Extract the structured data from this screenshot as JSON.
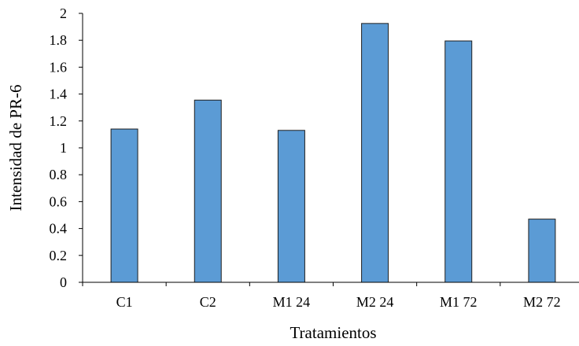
{
  "chart_data": {
    "type": "bar",
    "categories": [
      "C1",
      "C2",
      "M1 24",
      "M2 24",
      "M1 72",
      "M2 72"
    ],
    "values": [
      1.14,
      1.355,
      1.13,
      1.925,
      1.795,
      0.47
    ],
    "xlabel": "Tratamientos",
    "ylabel": "Intensidad de PR-6",
    "ylim": [
      0,
      2
    ],
    "yticks": [
      "0",
      "0.2",
      "0.4",
      "0.6",
      "0.8",
      "1",
      "1.2",
      "1.4",
      "1.6",
      "1.8",
      "2"
    ],
    "grid": false,
    "legend": "none",
    "bar_color": "#5b9bd5"
  }
}
